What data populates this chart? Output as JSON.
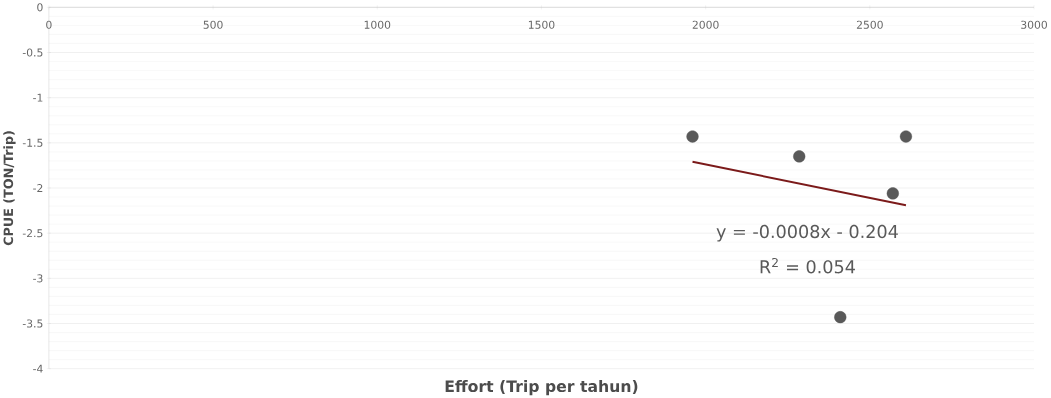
{
  "chart_data": {
    "type": "scatter",
    "xlabel": "Effort (Trip per tahun)",
    "ylabel": "CPUE (TON/Trip)",
    "series": [
      {
        "color": "#595959",
        "marker": "circle",
        "x": [
          1960,
          2285,
          2410,
          2570,
          2610
        ],
        "values": [
          -1.43,
          -1.65,
          -3.43,
          -2.06,
          -1.43
        ]
      },
      {
        "type": "line",
        "color": "#7b1a1a",
        "x": [
          1960,
          2610
        ],
        "values": [
          -1.71,
          -2.19
        ]
      }
    ],
    "xlim": [
      0,
      3000
    ],
    "xticks": [
      0,
      500,
      1000,
      1500,
      2000,
      2500,
      3000
    ],
    "ylim": [
      -4,
      0
    ],
    "yticks": [
      -4,
      -3.5,
      -3,
      -2.5,
      -2,
      -1.5,
      -1,
      -0.5,
      0
    ],
    "grid": "y",
    "annotations": [
      "y = -0.0008x - 0.204",
      "R$^{2}$ = 0.054"
    ]
  }
}
